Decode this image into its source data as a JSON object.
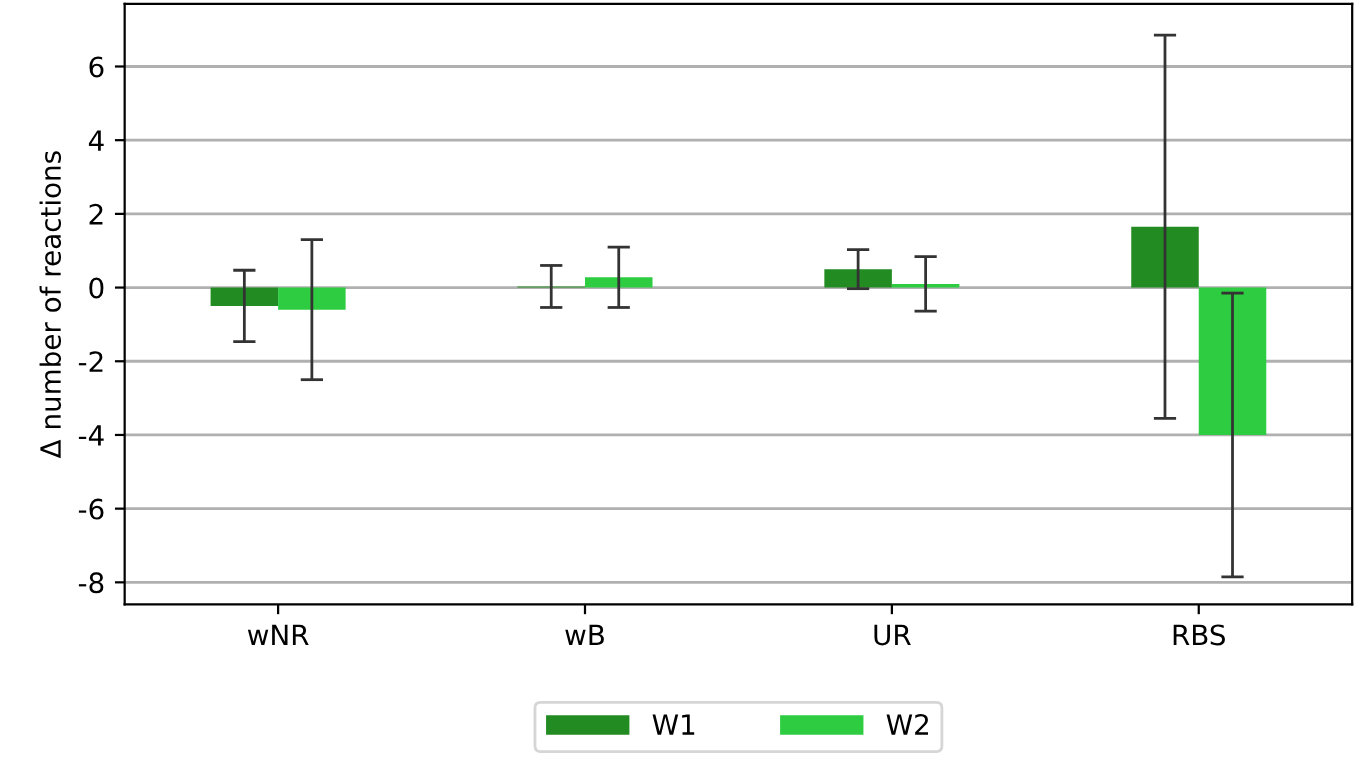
{
  "chart_data": {
    "type": "bar",
    "ylabel": "Δ number of reactions",
    "categories": [
      "wNR",
      "wB",
      "UR",
      "RBS"
    ],
    "series": [
      {
        "name": "W1",
        "color": "#228b22",
        "values": [
          -0.5,
          0.03,
          0.5,
          1.65
        ],
        "errors": [
          0.97,
          0.57,
          0.53,
          5.2
        ]
      },
      {
        "name": "W2",
        "color": "#2ecc40",
        "values": [
          -0.6,
          0.28,
          0.1,
          -4.0
        ],
        "errors": [
          1.9,
          0.82,
          0.74,
          3.85
        ]
      }
    ],
    "ylim": [
      -8.6,
      7.7
    ],
    "yticks": [
      -8,
      -6,
      -4,
      -2,
      0,
      2,
      4,
      6
    ],
    "grid": "y",
    "legend": "bottom"
  }
}
